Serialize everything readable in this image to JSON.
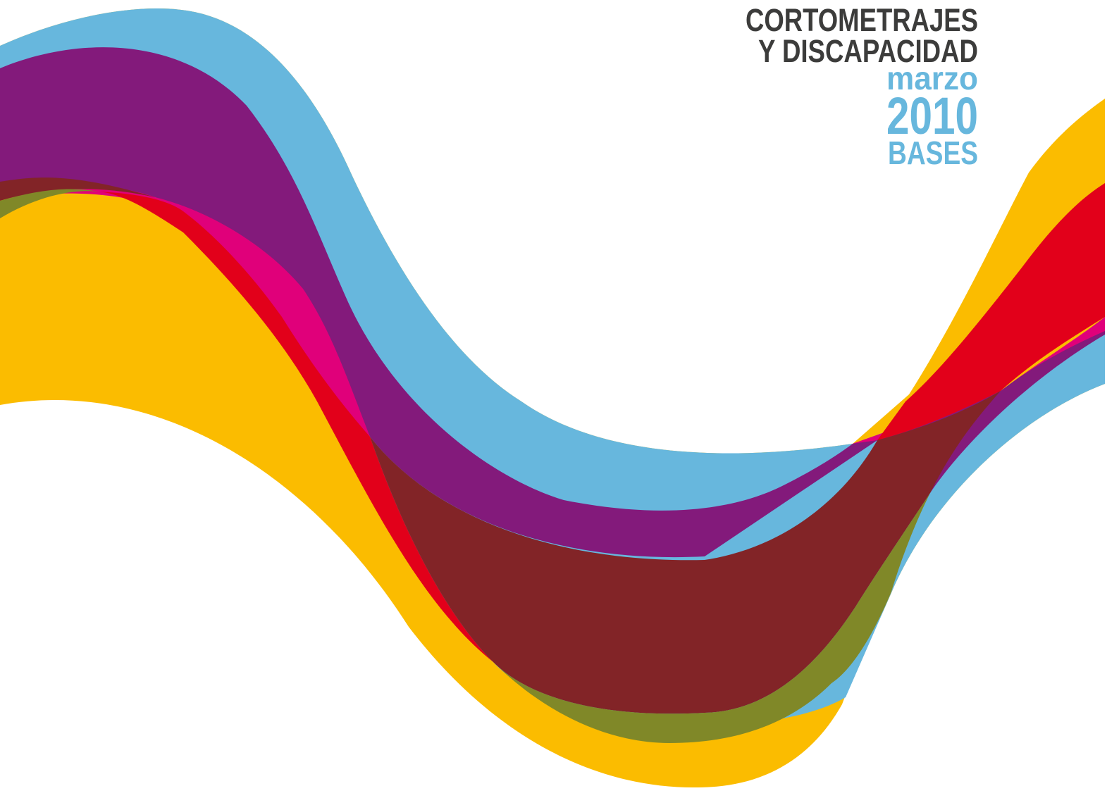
{
  "title": {
    "line1": "CORTOMETRAJES",
    "line2": "Y DISCAPACIDAD"
  },
  "date": {
    "month": "marzo",
    "year": "2010"
  },
  "label": "BASES"
}
